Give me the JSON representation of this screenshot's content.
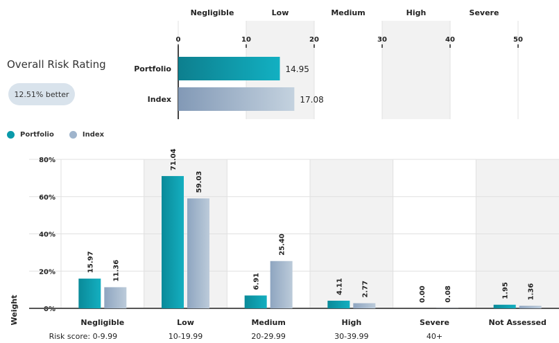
{
  "summary": {
    "title": "Overall Risk Rating",
    "badge": "12.51% better"
  },
  "legend": {
    "portfolio": "Portfolio",
    "index": "Index"
  },
  "colors": {
    "portfolio": "#0a9aaa",
    "index": "#9fb4cc",
    "band": "#f2f2f2"
  },
  "chart_data": [
    {
      "type": "bar",
      "orientation": "horizontal",
      "categories": [
        "Portfolio",
        "Index"
      ],
      "values": [
        14.95,
        17.08
      ],
      "value_labels": [
        "14.95",
        "17.08"
      ],
      "xlim": [
        0,
        50
      ],
      "xticks": [
        "0",
        "10",
        "20",
        "30",
        "40",
        "50"
      ],
      "bands": [
        "Negligible",
        "Low",
        "Medium",
        "High",
        "Severe"
      ]
    },
    {
      "type": "bar",
      "categories": [
        "Negligible",
        "Low",
        "Medium",
        "High",
        "Severe",
        "Not Assessed"
      ],
      "risk_scores": [
        "Risk score: 0-9.99",
        "10-19.99",
        "20-29.99",
        "30-39.99",
        "40+",
        ""
      ],
      "series": [
        {
          "name": "Portfolio",
          "values": [
            15.97,
            71.04,
            6.91,
            4.11,
            0.0,
            1.95
          ],
          "labels": [
            "15.97",
            "71.04",
            "6.91",
            "4.11",
            "0.00",
            "1.95"
          ]
        },
        {
          "name": "Index",
          "values": [
            11.36,
            59.03,
            25.4,
            2.77,
            0.08,
            1.36
          ],
          "labels": [
            "11.36",
            "59.03",
            "25.40",
            "2.77",
            "0.08",
            "1.36"
          ]
        }
      ],
      "ylabel": "Weight",
      "ylim": [
        0,
        80
      ],
      "yticks": [
        "0%",
        "20%",
        "40%",
        "60%",
        "80%"
      ],
      "yticks_values": [
        0,
        20,
        40,
        60,
        80
      ],
      "grid": true,
      "legend": "top-left"
    }
  ]
}
